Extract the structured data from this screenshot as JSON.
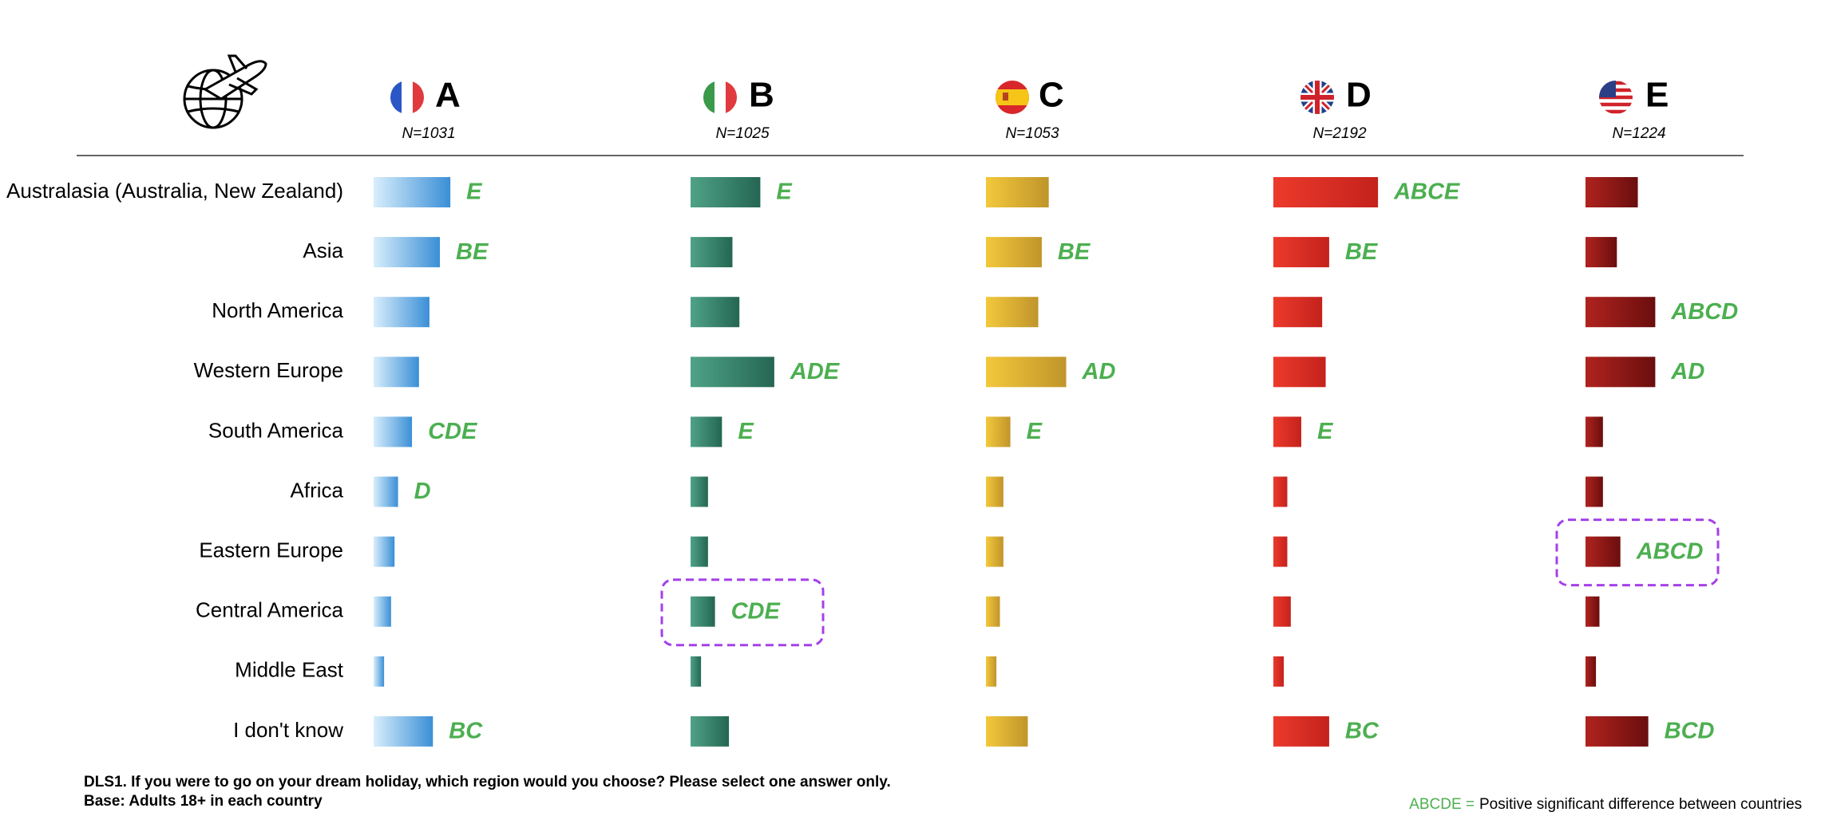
{
  "chart_data": {
    "type": "bar",
    "orientation": "horizontal",
    "categories": [
      "Australasia (Australia, New Zealand)",
      "Asia",
      "North America",
      "Western Europe",
      "South America",
      "Africa",
      "Eastern Europe",
      "Central America",
      "Middle East",
      "I don't know"
    ],
    "series": [
      {
        "name": "A",
        "n_label": "N=1031",
        "color": "#3a8fd6",
        "gradient": [
          "#d8eefc",
          "#3a8fd6"
        ],
        "values": [
          22,
          19,
          16,
          13,
          11,
          7,
          6,
          5,
          3,
          17
        ],
        "sig": [
          "E",
          "BE",
          null,
          null,
          "CDE",
          "D",
          null,
          null,
          null,
          "BC"
        ]
      },
      {
        "name": "B",
        "n_label": "N=1025",
        "color": "#2f7d66",
        "gradient": [
          "#4fa287",
          "#246653"
        ],
        "values": [
          20,
          12,
          14,
          24,
          9,
          5,
          5,
          7,
          3,
          11
        ],
        "sig": [
          "E",
          null,
          null,
          "ADE",
          "E",
          null,
          null,
          "CDE",
          null,
          null
        ]
      },
      {
        "name": "C",
        "n_label": "N=1053",
        "color": "#e0b030",
        "gradient": [
          "#f3c83c",
          "#c0952a"
        ],
        "values": [
          18,
          16,
          15,
          23,
          7,
          5,
          5,
          4,
          3,
          12
        ],
        "sig": [
          null,
          "BE",
          null,
          "AD",
          "E",
          null,
          null,
          null,
          null,
          null
        ]
      },
      {
        "name": "D",
        "n_label": "N=2192",
        "color": "#e3302a",
        "gradient": [
          "#ec3a2c",
          "#c4221c"
        ],
        "values": [
          30,
          16,
          14,
          15,
          8,
          4,
          4,
          5,
          3,
          16
        ],
        "sig": [
          "ABCE",
          "BE",
          null,
          null,
          "E",
          null,
          null,
          null,
          null,
          "BC"
        ]
      },
      {
        "name": "E",
        "n_label": "N=1224",
        "color": "#961a17",
        "gradient": [
          "#b0231e",
          "#6a0e0e"
        ],
        "values": [
          15,
          9,
          20,
          20,
          5,
          5,
          10,
          4,
          3,
          18
        ],
        "sig": [
          null,
          null,
          "ABCD",
          "AD",
          null,
          null,
          "ABCD",
          null,
          null,
          "BCD"
        ]
      }
    ],
    "highlights": [
      {
        "series": 1,
        "category": 7
      },
      {
        "series": 4,
        "category": 6
      }
    ],
    "sig_color": "#4caf50",
    "footnote": [
      "DLS1. If you were to go on your dream holiday, which region would you choose? Please select one answer only.",
      "Base: Adults 18+ in each country"
    ],
    "legend_note": {
      "key": "ABCDE =",
      "text": "Positive significant difference between countries"
    }
  }
}
